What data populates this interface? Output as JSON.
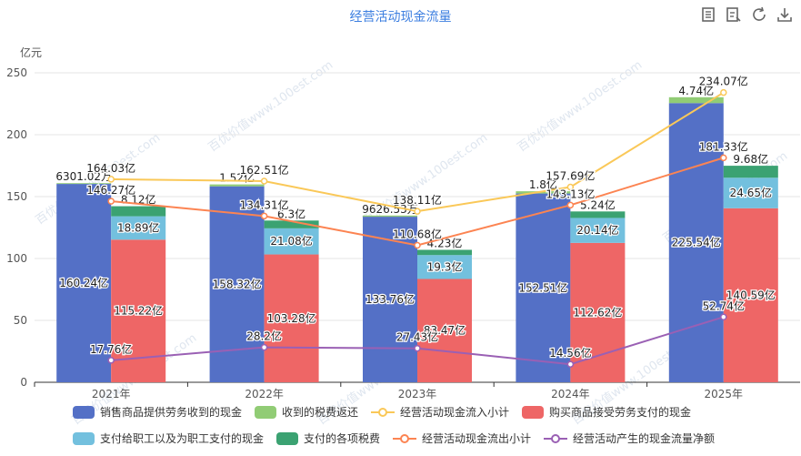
{
  "title": "经营活动现金流量",
  "toolbox": {
    "icons": [
      "data-view-icon",
      "restore-view-icon",
      "refresh-icon",
      "download-icon"
    ]
  },
  "watermark": "百优价值www.100est.com",
  "legend": [
    {
      "name": "销售商品提供劳务收到的现金",
      "kind": "bar",
      "color": "#5470c6"
    },
    {
      "name": "收到的税费返还",
      "kind": "bar",
      "color": "#91cc75"
    },
    {
      "name": "经营活动现金流入小计",
      "kind": "line",
      "color": "#fac858"
    },
    {
      "name": "购买商品接受劳务支付的现金",
      "kind": "bar",
      "color": "#ee6666"
    },
    {
      "name": "支付给职工以及为职工支付的现金",
      "kind": "bar",
      "color": "#73c0de"
    },
    {
      "name": "支付的各项税费",
      "kind": "bar",
      "color": "#3ba272"
    },
    {
      "name": "经营活动现金流出小计",
      "kind": "line",
      "color": "#fc8452"
    },
    {
      "name": "经营活动产生的现金流量净额",
      "kind": "line",
      "color": "#9a60b4"
    }
  ],
  "chart_data": {
    "type": "bar",
    "ylabel": "亿元",
    "ylim": [
      0,
      250
    ],
    "yticks": [
      0,
      50,
      100,
      150,
      200,
      250
    ],
    "categories": [
      "2021年",
      "2022年",
      "2023年",
      "2024年",
      "2025年"
    ],
    "inflow_stack": [
      {
        "name": "销售商品提供劳务收到的现金",
        "color": "#5470c6",
        "values": [
          160.24,
          158.32,
          133.76,
          152.51,
          225.54
        ],
        "labels": [
          "160.24亿",
          "158.32亿",
          "133.76亿",
          "152.51亿",
          "225.54亿"
        ]
      },
      {
        "name": "收到的税费返还",
        "color": "#91cc75",
        "values": [
          0.63,
          1.52,
          0.96,
          1.8,
          4.74
        ],
        "labels": [
          "6301.02万",
          "1.52亿",
          "9626.53万",
          "1.8亿",
          "4.74亿"
        ]
      }
    ],
    "outflow_stack": [
      {
        "name": "购买商品接受劳务支付的现金",
        "color": "#ee6666",
        "values": [
          115.22,
          103.28,
          83.47,
          112.62,
          140.59
        ],
        "labels": [
          "115.22亿",
          "103.28亿",
          "83.47亿",
          "112.62亿",
          "140.59亿"
        ]
      },
      {
        "name": "支付给职工以及为职工支付的现金",
        "color": "#73c0de",
        "values": [
          18.89,
          21.08,
          19.3,
          20.14,
          24.65
        ],
        "labels": [
          "18.89亿",
          "21.08亿",
          "19.3亿",
          "20.14亿",
          "24.65亿"
        ]
      },
      {
        "name": "支付的各项税费",
        "color": "#3ba272",
        "values": [
          8.12,
          6.3,
          4.23,
          5.24,
          9.68
        ],
        "labels": [
          "8.12亿",
          "6.3亿",
          "4.23亿",
          "5.24亿",
          "9.68亿"
        ]
      }
    ],
    "lines": [
      {
        "name": "经营活动现金流入小计",
        "color": "#fac858",
        "values": [
          164.03,
          162.51,
          138.11,
          157.69,
          234.07
        ],
        "labels": [
          "164.03亿",
          "162.51亿",
          "138.11亿",
          "157.69亿",
          "234.07亿"
        ]
      },
      {
        "name": "经营活动现金流出小计",
        "color": "#fc8452",
        "values": [
          146.27,
          134.31,
          110.68,
          143.13,
          181.33
        ],
        "labels": [
          "146.27亿",
          "134.31亿",
          "110.68亿",
          "143.13亿",
          "181.33亿"
        ]
      },
      {
        "name": "经营活动产生的现金流量净额",
        "color": "#9a60b4",
        "values": [
          17.76,
          28.2,
          27.43,
          14.56,
          52.74
        ],
        "labels": [
          "17.76亿",
          "28.2亿",
          "27.43亿",
          "14.56亿",
          "52.74亿"
        ]
      }
    ]
  }
}
